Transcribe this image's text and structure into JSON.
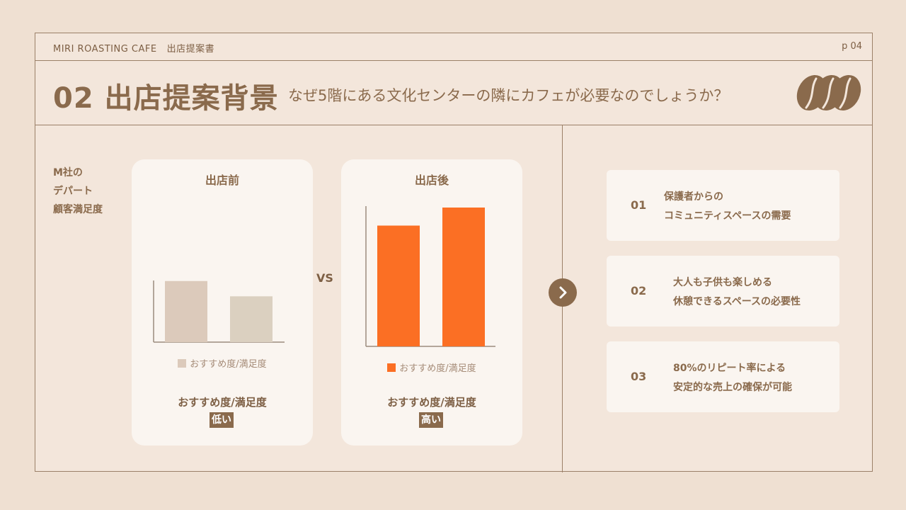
{
  "header": {
    "brand": "MIRI ROASTING CAFE",
    "doc_title": "出店提案書",
    "page": "p 04"
  },
  "title": "02 出店提案背景",
  "subtitle": "なぜ5階にある文化センターの隣にカフェが必要なのでしょうか？",
  "comparison": {
    "ylabel_lines": [
      "M社の",
      "デパート",
      "顧客満足度"
    ],
    "vs": "VS",
    "before": {
      "title": "出店前",
      "legend": "おすすめ度/満足度",
      "metric": "おすすめ度/満足度",
      "level": "低い",
      "bar_color": "#dccabb",
      "bar_color_2": "#dbd0c0"
    },
    "after": {
      "title": "出店後",
      "legend": "おすすめ度/満足度",
      "metric": "おすすめ度/満足度",
      "level": "高い",
      "bar_color": "#fb6f24"
    }
  },
  "chart_data": [
    {
      "type": "bar",
      "title": "出店前",
      "categories": [
        "",
        ""
      ],
      "series": [
        {
          "name": "おすすめ度/満足度",
          "values": [
            0.44,
            0.33
          ]
        }
      ],
      "ylim": [
        0,
        1
      ]
    },
    {
      "type": "bar",
      "title": "出店後",
      "categories": [
        "",
        ""
      ],
      "series": [
        {
          "name": "おすすめ度/満足度",
          "values": [
            0.87,
            1.0
          ]
        }
      ],
      "ylim": [
        0,
        1
      ]
    }
  ],
  "reasons": [
    {
      "num": "01",
      "line1": "保護者からの",
      "line2": "コミュニティスペースの需要"
    },
    {
      "num": "02",
      "line1": "大人も子供も楽しめる",
      "line2": "休憩できるスペースの必要性"
    },
    {
      "num": "03",
      "line1": "80%のリピート率による",
      "line2": "安定的な売上の確保が可能"
    }
  ],
  "colors": {
    "brown": "#8a6a4c",
    "orange": "#fb6f24",
    "background": "#efe0d2"
  },
  "icons": {
    "next": "chevron-right-icon",
    "decoration": "coffee-beans-icon"
  }
}
